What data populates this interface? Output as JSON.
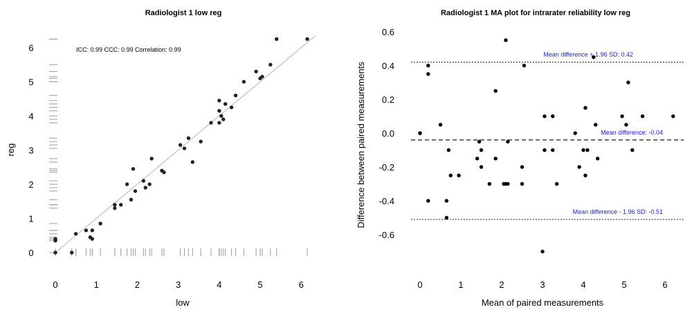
{
  "chart_data": [
    {
      "type": "scatter",
      "title": "Radiologist 1   low   reg",
      "xlabel": "low",
      "ylabel": "reg",
      "xlim": [
        -0.2,
        6.3
      ],
      "ylim": [
        -0.15,
        6.35
      ],
      "xticks": [
        "0",
        "1",
        "2",
        "3",
        "4",
        "5",
        "6"
      ],
      "yticks": [
        "0",
        "1",
        "2",
        "3",
        "4",
        "5",
        "6"
      ],
      "annotation": "ICC:  0.99  CCC:  0.99  Correlation:  0.99",
      "identity_line": true,
      "rug": true,
      "grid": false,
      "x": [
        0,
        0,
        0,
        0.4,
        0.5,
        0.75,
        0.85,
        0.9,
        0.9,
        1.1,
        1.45,
        1.45,
        1.6,
        1.75,
        1.85,
        1.9,
        1.95,
        2.15,
        2.2,
        2.3,
        2.35,
        2.6,
        2.65,
        3.05,
        3.15,
        3.25,
        3.35,
        3.55,
        3.8,
        4.0,
        4.0,
        4.0,
        4.05,
        4.1,
        4.15,
        4.3,
        4.4,
        4.6,
        4.9,
        5.0,
        5.05,
        5.25,
        5.4,
        6.15
      ],
      "y": [
        0,
        0.35,
        0.4,
        0,
        0.55,
        0.65,
        0.45,
        0.4,
        0.65,
        0.85,
        1.3,
        1.4,
        1.4,
        2.0,
        1.55,
        2.45,
        1.8,
        2.1,
        1.9,
        2.0,
        2.75,
        2.4,
        2.35,
        3.15,
        3.05,
        3.35,
        2.65,
        3.25,
        3.8,
        4.45,
        4.15,
        3.8,
        4.0,
        3.9,
        4.35,
        4.25,
        4.6,
        5.0,
        5.3,
        5.1,
        5.15,
        5.5,
        6.25,
        6.25
      ]
    },
    {
      "type": "scatter",
      "title": "Radiologist 1   MA plot for intrarater reliability   low   reg",
      "xlabel": "Mean of paired measurements",
      "ylabel": "Difference between paired measurements",
      "xlim": [
        -0.3,
        6.4
      ],
      "ylim": [
        -0.75,
        0.65
      ],
      "xticks": [
        "0",
        "1",
        "2",
        "3",
        "4",
        "5",
        "6"
      ],
      "yticks": [
        "0.6",
        "0.4",
        "0.2",
        "0.0",
        "-0.2",
        "-0.4",
        "-0.6"
      ],
      "grid": false,
      "reference_lines": [
        {
          "label": "Mean difference + 1.96 SD:  0.42",
          "value": 0.42,
          "style": "dotted"
        },
        {
          "label": "Mean difference:  -0.04",
          "value": -0.04,
          "style": "dashed"
        },
        {
          "label": "Mean difference - 1.96 SD:  -0.51",
          "value": -0.51,
          "style": "dotted"
        }
      ],
      "x": [
        0,
        0,
        0.2,
        0.2,
        0.2,
        0.5,
        0.65,
        0.65,
        0.7,
        0.75,
        0.95,
        1.4,
        1.45,
        1.5,
        1.5,
        1.7,
        1.85,
        1.85,
        2.05,
        2.1,
        2.1,
        2.15,
        2.15,
        2.5,
        2.5,
        2.55,
        3.0,
        3.05,
        3.05,
        3.25,
        3.25,
        3.35,
        3.8,
        3.9,
        4.0,
        4.05,
        4.05,
        4.1,
        4.25,
        4.3,
        4.35,
        4.95,
        5.05,
        5.1,
        5.2,
        5.45,
        6.2
      ],
      "y": [
        0,
        0,
        0.35,
        0.4,
        -0.4,
        0.05,
        -0.4,
        -0.5,
        -0.1,
        -0.25,
        -0.25,
        -0.15,
        -0.05,
        -0.1,
        -0.2,
        -0.3,
        0.25,
        -0.15,
        -0.3,
        -0.3,
        0.55,
        -0.05,
        -0.3,
        -0.2,
        -0.3,
        0.4,
        -0.7,
        -0.1,
        0.1,
        0.1,
        -0.1,
        -0.3,
        0.0,
        -0.2,
        -0.1,
        -0.25,
        0.15,
        -0.1,
        0.45,
        0.05,
        -0.15,
        0.1,
        0.05,
        0.3,
        -0.1,
        0.1,
        0.1
      ]
    }
  ]
}
